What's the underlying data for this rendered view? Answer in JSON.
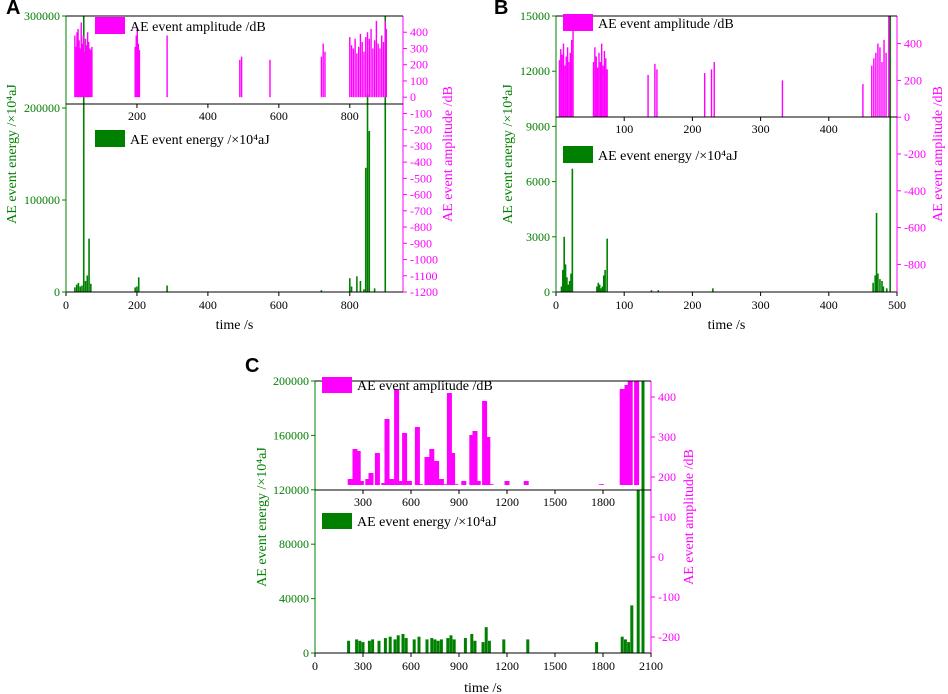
{
  "colors": {
    "energy": "#008000",
    "amplitude": "#ff00ff",
    "axis": "#000000"
  },
  "panels": [
    {
      "letter": "A",
      "xlabel": "time /s",
      "energy_label": "AE event energy /×10⁴aJ",
      "amplitude_label": "AE event amplitude /dB",
      "legend_energy": "AE event energy /×10⁴aJ",
      "legend_amplitude": "AE event amplitude /dB",
      "energy_axis_label": "AE event energy /×10⁴aJ",
      "amplitude_axis_label": "AE event amplitude /dB"
    },
    {
      "letter": "B",
      "xlabel": "time /s",
      "legend_energy": "AE event energy /×10⁴aJ",
      "legend_amplitude": "AE event amplitude /dB",
      "energy_axis_label": "AE event energy /×10⁴aJ",
      "amplitude_axis_label": "AE event amplitude /dB"
    },
    {
      "letter": "C",
      "xlabel": "time /s",
      "legend_energy": "AE event energy /×10⁴aJ",
      "legend_amplitude": "AE event amplitude /dB",
      "energy_axis_label": "AE event energy /×10⁴aJ",
      "amplitude_axis_label": "AE event amplitude /dB"
    }
  ],
  "chart_data": [
    {
      "type": "bar",
      "panel": "A",
      "title": "",
      "xlabel": "time /s",
      "ylabel": "AE event energy /×10⁴aJ",
      "y2label": "AE event amplitude /dB",
      "xlim": [
        0,
        950
      ],
      "ylim": [
        0,
        300000
      ],
      "y2lim": [
        -1200,
        500
      ],
      "x_ticks": [
        0,
        200,
        400,
        600,
        800
      ],
      "y_ticks": [
        0,
        100000,
        200000,
        300000
      ],
      "y2_ticks": [
        -1200,
        -1100,
        -1000,
        -900,
        -800,
        -700,
        -600,
        -500,
        -400,
        -300,
        -200,
        -100,
        0,
        100,
        200,
        300,
        400
      ],
      "inner_x_ticks": [
        200,
        400,
        600,
        800
      ],
      "series": [
        {
          "name": "AE event energy /×10⁴aJ",
          "axis": "left",
          "x": [
            25,
            30,
            35,
            40,
            45,
            50,
            55,
            60,
            65,
            70,
            195,
            200,
            205,
            285,
            720,
            800,
            805,
            820,
            830,
            840,
            845,
            850,
            855,
            870,
            900
          ],
          "values": [
            5000,
            8000,
            10000,
            6000,
            7000,
            300000,
            12000,
            18000,
            58000,
            9000,
            5000,
            6000,
            16000,
            7000,
            2000,
            15000,
            6000,
            17000,
            12000,
            3000,
            135000,
            215000,
            175000,
            4000,
            300000
          ]
        },
        {
          "name": "AE event amplitude /dB",
          "axis": "right",
          "x": [
            25,
            28,
            31,
            34,
            37,
            40,
            43,
            46,
            49,
            52,
            55,
            58,
            61,
            64,
            67,
            70,
            73,
            195,
            198,
            201,
            204,
            207,
            285,
            490,
            495,
            575,
            720,
            725,
            730,
            800,
            805,
            810,
            815,
            820,
            825,
            830,
            835,
            840,
            845,
            850,
            855,
            860,
            865,
            870,
            875,
            880,
            885,
            890,
            895,
            900,
            903
          ],
          "values": [
            380,
            310,
            400,
            420,
            350,
            300,
            460,
            330,
            380,
            280,
            360,
            320,
            400,
            340,
            300,
            290,
            310,
            310,
            380,
            420,
            330,
            290,
            380,
            230,
            250,
            230,
            250,
            330,
            280,
            370,
            320,
            300,
            360,
            270,
            310,
            390,
            340,
            280,
            370,
            400,
            360,
            420,
            300,
            350,
            470,
            330,
            300,
            380,
            340,
            470,
            420
          ]
        }
      ]
    },
    {
      "type": "bar",
      "panel": "B",
      "title": "",
      "xlabel": "time /s",
      "ylabel": "AE event energy /×10⁴aJ",
      "y2label": "AE event amplitude /dB",
      "xlim": [
        0,
        500
      ],
      "ylim": [
        0,
        15000
      ],
      "y2lim": [
        -950,
        550
      ],
      "x_ticks": [
        0,
        100,
        200,
        300,
        400,
        500
      ],
      "y_ticks": [
        0,
        3000,
        6000,
        9000,
        12000,
        15000
      ],
      "y2_ticks": [
        -800,
        -600,
        -400,
        -200,
        0,
        200,
        400
      ],
      "inner_x_ticks": [
        100,
        200,
        300,
        400
      ],
      "series": [
        {
          "name": "AE event energy /×10⁴aJ",
          "axis": "left",
          "x": [
            8,
            10,
            12,
            14,
            16,
            18,
            20,
            22,
            24,
            60,
            62,
            64,
            66,
            68,
            70,
            72,
            75,
            140,
            150,
            230,
            465,
            468,
            470,
            472,
            475,
            478,
            480,
            485,
            490
          ],
          "values": [
            300,
            1200,
            3000,
            1500,
            800,
            400,
            600,
            1000,
            6700,
            300,
            500,
            400,
            200,
            300,
            900,
            1200,
            2900,
            100,
            100,
            200,
            500,
            900,
            4300,
            1000,
            700,
            600,
            300,
            200,
            15000
          ]
        },
        {
          "name": "AE event amplitude /dB",
          "axis": "right",
          "x": [
            5,
            7,
            9,
            11,
            13,
            15,
            17,
            19,
            21,
            23,
            25,
            55,
            57,
            59,
            61,
            63,
            65,
            67,
            69,
            71,
            73,
            75,
            135,
            145,
            148,
            218,
            228,
            232,
            332,
            450,
            463,
            466,
            469,
            472,
            475,
            478,
            481,
            484,
            488
          ],
          "values": [
            310,
            370,
            340,
            400,
            280,
            330,
            380,
            300,
            350,
            420,
            500,
            300,
            380,
            330,
            270,
            350,
            300,
            400,
            280,
            360,
            320,
            260,
            230,
            290,
            260,
            240,
            260,
            300,
            200,
            180,
            280,
            320,
            350,
            400,
            380,
            300,
            420,
            350,
            550
          ]
        }
      ]
    },
    {
      "type": "bar",
      "panel": "C",
      "title": "",
      "xlabel": "time /s",
      "ylabel": "AE event energy /×10⁴aJ",
      "y2label": "AE event amplitude /dB",
      "xlim": [
        0,
        2100
      ],
      "ylim": [
        0,
        200000
      ],
      "y2lim": [
        -240,
        440
      ],
      "x_ticks": [
        0,
        300,
        600,
        900,
        1200,
        1500,
        1800,
        2100
      ],
      "y_ticks": [
        0,
        40000,
        80000,
        120000,
        160000,
        200000
      ],
      "y2_ticks": [
        -200,
        -100,
        0,
        100,
        200,
        300,
        400
      ],
      "inner_x_ticks": [
        300,
        600,
        900,
        1200,
        1500,
        1800
      ],
      "series": [
        {
          "name": "AE event energy /×10⁴aJ",
          "axis": "left",
          "x": [
            210,
            260,
            280,
            300,
            340,
            360,
            400,
            440,
            470,
            500,
            520,
            550,
            570,
            620,
            650,
            700,
            730,
            750,
            770,
            790,
            830,
            850,
            870,
            940,
            980,
            1000,
            1050,
            1070,
            1090,
            1180,
            1330,
            1760,
            1920,
            1940,
            1960,
            1980,
            2020,
            2050
          ],
          "values": [
            9000,
            10000,
            9000,
            8000,
            9000,
            10000,
            9000,
            11000,
            12000,
            10000,
            13000,
            14000,
            11000,
            10000,
            12000,
            10000,
            11000,
            10000,
            9000,
            10000,
            11000,
            13000,
            10000,
            11000,
            14000,
            9000,
            8000,
            19000,
            9000,
            10000,
            10000,
            8000,
            12000,
            10000,
            8000,
            35000,
            120000,
            200000
          ]
        },
        {
          "name": "AE event amplitude /dB",
          "axis": "right",
          "x": [
            220,
            250,
            270,
            290,
            330,
            350,
            390,
            430,
            450,
            480,
            510,
            530,
            560,
            590,
            640,
            660,
            700,
            730,
            760,
            790,
            810,
            840,
            860,
            880,
            930,
            980,
            1000,
            1020,
            1060,
            1080,
            1100,
            1200,
            1320,
            1790,
            1920,
            1950,
            1970,
            2010
          ],
          "values": [
            195,
            270,
            265,
            190,
            195,
            210,
            260,
            185,
            345,
            195,
            420,
            190,
            310,
            190,
            325,
            180,
            250,
            270,
            240,
            195,
            180,
            410,
            260,
            180,
            190,
            305,
            315,
            190,
            390,
            300,
            180,
            190,
            190,
            180,
            420,
            430,
            440,
            445
          ]
        }
      ]
    }
  ]
}
